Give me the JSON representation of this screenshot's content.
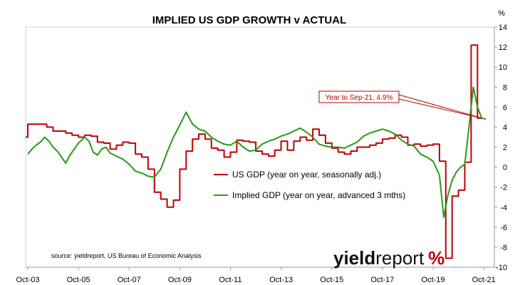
{
  "chart_data": {
    "type": "line",
    "title": "IMPLIED US GDP GROWTH v ACTUAL",
    "yunit": "%",
    "xlabel": "",
    "ylabel": "",
    "ylim": [
      -10,
      14
    ],
    "yticks": [
      14,
      12,
      10,
      8,
      6,
      4,
      2,
      0,
      -2,
      -4,
      -6,
      -8,
      -10
    ],
    "xlim": [
      "2003-10",
      "2022-03"
    ],
    "xticks": [
      "Oct-03",
      "Oct-05",
      "Oct-07",
      "Oct-09",
      "Oct-11",
      "Oct-13",
      "Oct-15",
      "Oct-17",
      "Oct-19",
      "Oct-21"
    ],
    "grid": false,
    "legend_position": "center",
    "series": [
      {
        "name": "US GDP (year on year, seasonally adj.)",
        "color": "#c00000",
        "step": true,
        "points": [
          [
            "2003-09",
            3.0
          ],
          [
            "2003-10",
            4.3
          ],
          [
            "2004-01",
            4.3
          ],
          [
            "2004-04",
            4.3
          ],
          [
            "2004-07",
            4.0
          ],
          [
            "2004-10",
            3.6
          ],
          [
            "2005-01",
            3.6
          ],
          [
            "2005-04",
            3.4
          ],
          [
            "2005-07",
            3.2
          ],
          [
            "2005-10",
            3.0
          ],
          [
            "2006-01",
            3.2
          ],
          [
            "2006-04",
            3.1
          ],
          [
            "2006-07",
            2.5
          ],
          [
            "2006-10",
            2.4
          ],
          [
            "2007-01",
            1.8
          ],
          [
            "2007-04",
            2.2
          ],
          [
            "2007-07",
            2.5
          ],
          [
            "2007-10",
            2.4
          ],
          [
            "2008-01",
            1.3
          ],
          [
            "2008-04",
            1.0
          ],
          [
            "2008-07",
            -0.2
          ],
          [
            "2008-10",
            -2.5
          ],
          [
            "2009-01",
            -3.2
          ],
          [
            "2009-04",
            -4.0
          ],
          [
            "2009-07",
            -3.3
          ],
          [
            "2009-10",
            -0.2
          ],
          [
            "2010-01",
            1.6
          ],
          [
            "2010-04",
            2.8
          ],
          [
            "2010-07",
            3.3
          ],
          [
            "2010-10",
            2.8
          ],
          [
            "2011-01",
            1.9
          ],
          [
            "2011-04",
            1.7
          ],
          [
            "2011-07",
            1.0
          ],
          [
            "2011-10",
            1.5
          ],
          [
            "2012-01",
            2.7
          ],
          [
            "2012-04",
            2.6
          ],
          [
            "2012-07",
            2.5
          ],
          [
            "2012-10",
            1.6
          ],
          [
            "2013-01",
            1.3
          ],
          [
            "2013-04",
            1.1
          ],
          [
            "2013-07",
            1.7
          ],
          [
            "2013-10",
            2.6
          ],
          [
            "2014-01",
            1.7
          ],
          [
            "2014-04",
            2.6
          ],
          [
            "2014-07",
            3.0
          ],
          [
            "2014-10",
            2.7
          ],
          [
            "2015-01",
            3.8
          ],
          [
            "2015-04",
            3.2
          ],
          [
            "2015-07",
            2.4
          ],
          [
            "2015-10",
            1.9
          ],
          [
            "2016-01",
            1.5
          ],
          [
            "2016-04",
            1.3
          ],
          [
            "2016-07",
            1.6
          ],
          [
            "2016-10",
            2.0
          ],
          [
            "2017-01",
            2.0
          ],
          [
            "2017-04",
            2.2
          ],
          [
            "2017-07",
            2.4
          ],
          [
            "2017-10",
            2.8
          ],
          [
            "2018-01",
            2.9
          ],
          [
            "2018-04",
            3.2
          ],
          [
            "2018-07",
            3.0
          ],
          [
            "2018-10",
            2.2
          ],
          [
            "2019-01",
            2.3
          ],
          [
            "2019-04",
            2.1
          ],
          [
            "2019-07",
            2.2
          ],
          [
            "2019-10",
            2.3
          ],
          [
            "2020-01",
            0.6
          ],
          [
            "2020-04",
            -9.1
          ],
          [
            "2020-07",
            -2.9
          ],
          [
            "2020-10",
            -2.3
          ],
          [
            "2021-01",
            0.5
          ],
          [
            "2021-04",
            12.2
          ],
          [
            "2021-07",
            4.9
          ],
          [
            "2021-09",
            4.9
          ]
        ]
      },
      {
        "name": "Implied GDP (year on year, advanced 3 mths)",
        "color": "#2a9a1a",
        "step": false,
        "points": [
          [
            "2003-10",
            1.3
          ],
          [
            "2003-12",
            1.8
          ],
          [
            "2004-02",
            2.2
          ],
          [
            "2004-04",
            2.5
          ],
          [
            "2004-06",
            3.0
          ],
          [
            "2004-08",
            2.6
          ],
          [
            "2004-10",
            2.0
          ],
          [
            "2004-12",
            1.6
          ],
          [
            "2005-02",
            1.0
          ],
          [
            "2005-04",
            0.4
          ],
          [
            "2005-06",
            1.2
          ],
          [
            "2005-08",
            1.8
          ],
          [
            "2005-10",
            2.4
          ],
          [
            "2006-01",
            3.0
          ],
          [
            "2006-03",
            2.6
          ],
          [
            "2006-05",
            1.5
          ],
          [
            "2006-07",
            1.2
          ],
          [
            "2006-09",
            1.8
          ],
          [
            "2006-11",
            2.0
          ],
          [
            "2007-01",
            1.4
          ],
          [
            "2007-04",
            1.1
          ],
          [
            "2007-07",
            0.8
          ],
          [
            "2007-10",
            0.3
          ],
          [
            "2008-01",
            -0.4
          ],
          [
            "2008-04",
            -0.6
          ],
          [
            "2008-07",
            -0.9
          ],
          [
            "2008-10",
            -1.0
          ],
          [
            "2009-01",
            -0.2
          ],
          [
            "2009-04",
            1.5
          ],
          [
            "2009-07",
            3.0
          ],
          [
            "2009-10",
            4.2
          ],
          [
            "2010-01",
            5.5
          ],
          [
            "2010-04",
            4.3
          ],
          [
            "2010-07",
            3.8
          ],
          [
            "2010-10",
            3.6
          ],
          [
            "2011-01",
            3.0
          ],
          [
            "2011-04",
            2.6
          ],
          [
            "2011-07",
            2.3
          ],
          [
            "2011-10",
            2.2
          ],
          [
            "2012-01",
            2.6
          ],
          [
            "2012-04",
            2.0
          ],
          [
            "2012-07",
            1.6
          ],
          [
            "2012-10",
            1.7
          ],
          [
            "2013-01",
            2.3
          ],
          [
            "2013-04",
            2.6
          ],
          [
            "2013-07",
            2.8
          ],
          [
            "2013-10",
            3.1
          ],
          [
            "2014-01",
            3.3
          ],
          [
            "2014-04",
            3.6
          ],
          [
            "2014-07",
            3.9
          ],
          [
            "2014-10",
            3.5
          ],
          [
            "2015-01",
            3.0
          ],
          [
            "2015-04",
            2.3
          ],
          [
            "2015-07",
            2.1
          ],
          [
            "2015-10",
            2.0
          ],
          [
            "2016-01",
            2.0
          ],
          [
            "2016-04",
            1.9
          ],
          [
            "2016-07",
            2.2
          ],
          [
            "2016-10",
            2.5
          ],
          [
            "2017-01",
            3.1
          ],
          [
            "2017-04",
            3.4
          ],
          [
            "2017-07",
            3.6
          ],
          [
            "2017-10",
            3.8
          ],
          [
            "2018-01",
            3.6
          ],
          [
            "2018-04",
            3.3
          ],
          [
            "2018-07",
            2.7
          ],
          [
            "2018-10",
            2.3
          ],
          [
            "2019-01",
            2.1
          ],
          [
            "2019-04",
            1.3
          ],
          [
            "2019-07",
            1.0
          ],
          [
            "2019-10",
            0.6
          ],
          [
            "2020-01",
            -0.8
          ],
          [
            "2020-03",
            -5.0
          ],
          [
            "2020-05",
            -2.8
          ],
          [
            "2020-07",
            -1.3
          ],
          [
            "2020-09",
            -0.5
          ],
          [
            "2020-11",
            0.0
          ],
          [
            "2021-01",
            0.3
          ],
          [
            "2021-03",
            4.0
          ],
          [
            "2021-05",
            8.0
          ],
          [
            "2021-07",
            6.0
          ],
          [
            "2021-09",
            4.9
          ],
          [
            "2021-11",
            4.8
          ]
        ]
      }
    ],
    "annotations": [
      {
        "text": "Year to Sep-21, 4.9%",
        "target": [
          "2021-09",
          4.9
        ]
      }
    ]
  },
  "source_note": "source: yieldreport, US Bureau of Economic Analysis",
  "brand": {
    "part1": "yield",
    "part2": "report",
    "part3": "%"
  }
}
